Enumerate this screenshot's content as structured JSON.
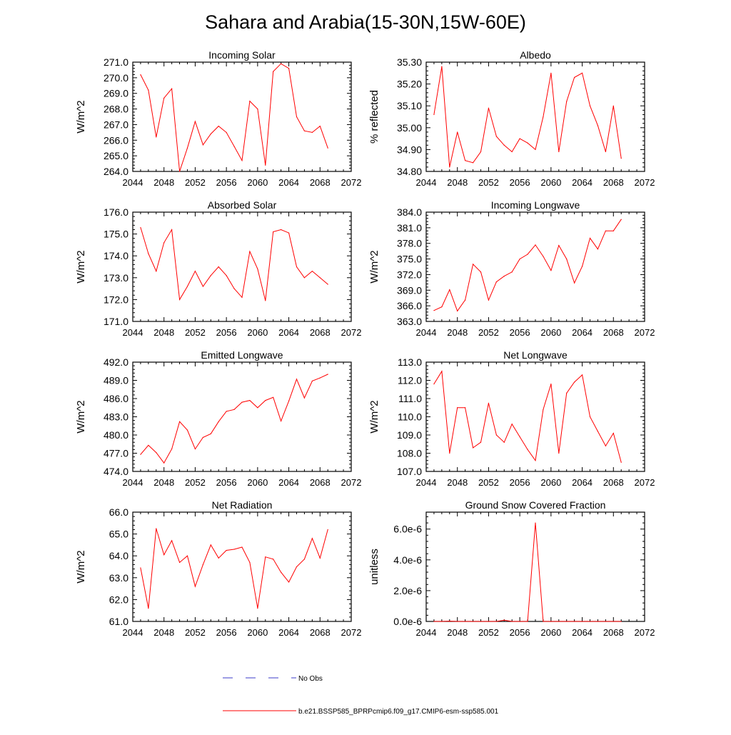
{
  "title": "Sahara and Arabia(15-30N,15W-60E)",
  "colors": {
    "series": "#ff0000",
    "obs": "#3c3cc8",
    "axis": "#000000"
  },
  "legend": {
    "obs_label": "No Obs",
    "model_label": "b.e21.BSSP585_BPRPcmip6.f09_g17.CMIP6-esm-ssp585.001"
  },
  "chart_data": [
    {
      "type": "line",
      "title": "Incoming Solar",
      "ylabel": "W/m^2",
      "xlim": [
        2044,
        2072
      ],
      "ylim": [
        264.0,
        271.0
      ],
      "xticks": [
        2044,
        2048,
        2052,
        2056,
        2060,
        2064,
        2068,
        2072
      ],
      "xtick_labels": [
        "2044",
        "2048",
        "2052",
        "2056",
        "2060",
        "2064",
        "2068",
        "2072"
      ],
      "yticks": [
        264,
        265,
        266,
        267,
        268,
        269,
        270,
        271
      ],
      "ytick_labels": [
        "264.0",
        "265.0",
        "266.0",
        "267.0",
        "268.0",
        "269.0",
        "270.0",
        "271.0"
      ],
      "x": [
        2045,
        2046,
        2047,
        2048,
        2049,
        2050,
        2051,
        2052,
        2053,
        2054,
        2055,
        2056,
        2057,
        2058,
        2059,
        2060,
        2061,
        2062,
        2063,
        2064,
        2065,
        2066,
        2067,
        2068,
        2069
      ],
      "y": [
        270.2,
        269.2,
        266.2,
        268.7,
        269.3,
        264.0,
        265.5,
        267.2,
        265.7,
        266.4,
        266.9,
        266.5,
        265.6,
        264.7,
        268.5,
        268.0,
        264.4,
        270.4,
        270.9,
        270.6,
        267.5,
        266.6,
        266.5,
        266.9,
        265.5
      ]
    },
    {
      "type": "line",
      "title": "Albedo",
      "ylabel": "% reflected",
      "xlim": [
        2044,
        2072
      ],
      "ylim": [
        34.8,
        35.3
      ],
      "xticks": [
        2044,
        2048,
        2052,
        2056,
        2060,
        2064,
        2068,
        2072
      ],
      "xtick_labels": [
        "2044",
        "2048",
        "2052",
        "2056",
        "2060",
        "2064",
        "2068",
        "2072"
      ],
      "yticks": [
        34.8,
        34.9,
        35.0,
        35.1,
        35.2,
        35.3
      ],
      "ytick_labels": [
        "34.80",
        "34.90",
        "35.00",
        "35.10",
        "35.20",
        "35.30"
      ],
      "x": [
        2045,
        2046,
        2047,
        2048,
        2049,
        2050,
        2051,
        2052,
        2053,
        2054,
        2055,
        2056,
        2057,
        2058,
        2059,
        2060,
        2061,
        2062,
        2063,
        2064,
        2065,
        2066,
        2067,
        2068,
        2069
      ],
      "y": [
        35.06,
        35.28,
        34.82,
        34.98,
        34.85,
        34.84,
        34.89,
        35.09,
        34.96,
        34.92,
        34.89,
        34.95,
        34.93,
        34.9,
        35.05,
        35.25,
        34.89,
        35.12,
        35.23,
        35.25,
        35.1,
        35.01,
        34.89,
        35.1,
        34.86
      ]
    },
    {
      "type": "line",
      "title": "Absorbed Solar",
      "ylabel": "W/m^2",
      "xlim": [
        2044,
        2072
      ],
      "ylim": [
        171.0,
        176.0
      ],
      "xticks": [
        2044,
        2048,
        2052,
        2056,
        2060,
        2064,
        2068,
        2072
      ],
      "xtick_labels": [
        "2044",
        "2048",
        "2052",
        "2056",
        "2060",
        "2064",
        "2068",
        "2072"
      ],
      "yticks": [
        171,
        172,
        173,
        174,
        175,
        176
      ],
      "ytick_labels": [
        "171.0",
        "172.0",
        "173.0",
        "174.0",
        "175.0",
        "176.0"
      ],
      "x": [
        2045,
        2046,
        2047,
        2048,
        2049,
        2050,
        2051,
        2052,
        2053,
        2054,
        2055,
        2056,
        2057,
        2058,
        2059,
        2060,
        2061,
        2062,
        2063,
        2064,
        2065,
        2066,
        2067,
        2068,
        2069
      ],
      "y": [
        175.3,
        174.1,
        173.3,
        174.6,
        175.2,
        172.0,
        172.6,
        173.3,
        172.6,
        173.1,
        173.5,
        173.1,
        172.5,
        172.1,
        174.2,
        173.4,
        171.95,
        175.1,
        175.2,
        175.05,
        173.5,
        173.0,
        173.3,
        173.0,
        172.7
      ]
    },
    {
      "type": "line",
      "title": "Incoming Longwave",
      "ylabel": "W/m^2",
      "xlim": [
        2044,
        2072
      ],
      "ylim": [
        363.0,
        384.0
      ],
      "xticks": [
        2044,
        2048,
        2052,
        2056,
        2060,
        2064,
        2068,
        2072
      ],
      "xtick_labels": [
        "2044",
        "2048",
        "2052",
        "2056",
        "2060",
        "2064",
        "2068",
        "2072"
      ],
      "yticks": [
        363,
        366,
        369,
        372,
        375,
        378,
        381,
        384
      ],
      "ytick_labels": [
        "363.0",
        "366.0",
        "369.0",
        "372.0",
        "375.0",
        "378.0",
        "381.0",
        "384.0"
      ],
      "x": [
        2045,
        2046,
        2047,
        2048,
        2049,
        2050,
        2051,
        2052,
        2053,
        2054,
        2055,
        2056,
        2057,
        2058,
        2059,
        2060,
        2061,
        2062,
        2063,
        2064,
        2065,
        2066,
        2067,
        2068,
        2069
      ],
      "y": [
        365.1,
        365.8,
        369.1,
        365.0,
        367.1,
        374.0,
        372.5,
        367.1,
        370.6,
        371.7,
        372.5,
        375.0,
        375.9,
        377.7,
        375.5,
        372.8,
        377.6,
        375.0,
        370.4,
        373.6,
        379.0,
        376.9,
        380.4,
        380.4,
        382.6
      ]
    },
    {
      "type": "line",
      "title": "Emitted Longwave",
      "ylabel": "W/m^2",
      "xlim": [
        2044,
        2072
      ],
      "ylim": [
        474.0,
        492.0
      ],
      "xticks": [
        2044,
        2048,
        2052,
        2056,
        2060,
        2064,
        2068,
        2072
      ],
      "xtick_labels": [
        "2044",
        "2048",
        "2052",
        "2056",
        "2060",
        "2064",
        "2068",
        "2072"
      ],
      "yticks": [
        474,
        477,
        480,
        483,
        486,
        489,
        492
      ],
      "ytick_labels": [
        "474.0",
        "477.0",
        "480.0",
        "483.0",
        "486.0",
        "489.0",
        "492.0"
      ],
      "x": [
        2045,
        2046,
        2047,
        2048,
        2049,
        2050,
        2051,
        2052,
        2053,
        2054,
        2055,
        2056,
        2057,
        2058,
        2059,
        2060,
        2061,
        2062,
        2063,
        2064,
        2065,
        2066,
        2067,
        2068,
        2069
      ],
      "y": [
        476.8,
        478.3,
        477.1,
        475.4,
        477.7,
        482.2,
        480.8,
        477.7,
        479.6,
        480.2,
        482.2,
        483.9,
        484.2,
        485.4,
        485.7,
        484.5,
        485.7,
        486.2,
        482.3,
        485.6,
        489.2,
        486.1,
        488.9,
        489.4,
        490.0
      ]
    },
    {
      "type": "line",
      "title": "Net Longwave",
      "ylabel": "W/m^2",
      "xlim": [
        2044,
        2072
      ],
      "ylim": [
        107.0,
        113.0
      ],
      "xticks": [
        2044,
        2048,
        2052,
        2056,
        2060,
        2064,
        2068,
        2072
      ],
      "xtick_labels": [
        "2044",
        "2048",
        "2052",
        "2056",
        "2060",
        "2064",
        "2068",
        "2072"
      ],
      "yticks": [
        107,
        108,
        109,
        110,
        111,
        112,
        113
      ],
      "ytick_labels": [
        "107.0",
        "108.0",
        "109.0",
        "110.0",
        "111.0",
        "112.0",
        "113.0"
      ],
      "x": [
        2045,
        2046,
        2047,
        2048,
        2049,
        2050,
        2051,
        2052,
        2053,
        2054,
        2055,
        2056,
        2057,
        2058,
        2059,
        2060,
        2061,
        2062,
        2063,
        2064,
        2065,
        2066,
        2067,
        2068,
        2069
      ],
      "y": [
        111.8,
        112.5,
        108.0,
        110.5,
        110.5,
        108.3,
        108.6,
        110.75,
        109.0,
        108.6,
        109.6,
        108.9,
        108.2,
        107.6,
        110.4,
        111.8,
        108.0,
        111.3,
        111.9,
        112.3,
        110.0,
        109.2,
        108.4,
        109.1,
        107.5
      ]
    },
    {
      "type": "line",
      "title": "Net Radiation",
      "ylabel": "W/m^2",
      "xlim": [
        2044,
        2072
      ],
      "ylim": [
        61.0,
        66.0
      ],
      "xticks": [
        2044,
        2048,
        2052,
        2056,
        2060,
        2064,
        2068,
        2072
      ],
      "xtick_labels": [
        "2044",
        "2048",
        "2052",
        "2056",
        "2060",
        "2064",
        "2068",
        "2072"
      ],
      "yticks": [
        61,
        62,
        63,
        64,
        65,
        66
      ],
      "ytick_labels": [
        "61.0",
        "62.0",
        "63.0",
        "64.0",
        "65.0",
        "66.0"
      ],
      "x": [
        2045,
        2046,
        2047,
        2048,
        2049,
        2050,
        2051,
        2052,
        2053,
        2054,
        2055,
        2056,
        2057,
        2058,
        2059,
        2060,
        2061,
        2062,
        2063,
        2064,
        2065,
        2066,
        2067,
        2068,
        2069
      ],
      "y": [
        63.45,
        61.6,
        65.25,
        64.05,
        64.7,
        63.7,
        64.0,
        62.6,
        63.6,
        64.5,
        63.9,
        64.25,
        64.3,
        64.4,
        63.7,
        61.6,
        63.95,
        63.85,
        63.25,
        62.8,
        63.5,
        63.85,
        64.8,
        63.9,
        65.2
      ]
    },
    {
      "type": "line",
      "title": "Ground Snow Covered Fraction",
      "ylabel": "unitless",
      "xlim": [
        2044,
        2072
      ],
      "ylim": [
        0,
        7.1e-06
      ],
      "xticks": [
        2044,
        2048,
        2052,
        2056,
        2060,
        2064,
        2068,
        2072
      ],
      "xtick_labels": [
        "2044",
        "2048",
        "2052",
        "2056",
        "2060",
        "2064",
        "2068",
        "2072"
      ],
      "yticks": [
        0,
        2e-06,
        4e-06,
        6e-06
      ],
      "ytick_labels": [
        "0.0e-6",
        "2.0e-6",
        "4.0e-6",
        "6.0e-6"
      ],
      "x": [
        2045,
        2046,
        2047,
        2048,
        2049,
        2050,
        2051,
        2052,
        2053,
        2054,
        2055,
        2056,
        2057,
        2058,
        2059,
        2060,
        2061,
        2062,
        2063,
        2064,
        2065,
        2066,
        2067,
        2068,
        2069
      ],
      "y": [
        0,
        0,
        2e-08,
        0,
        0,
        0,
        0,
        0,
        0,
        8e-08,
        0,
        0,
        0,
        6.4e-06,
        0,
        0,
        0,
        0,
        0,
        0,
        0,
        0,
        0,
        0,
        0
      ]
    }
  ]
}
